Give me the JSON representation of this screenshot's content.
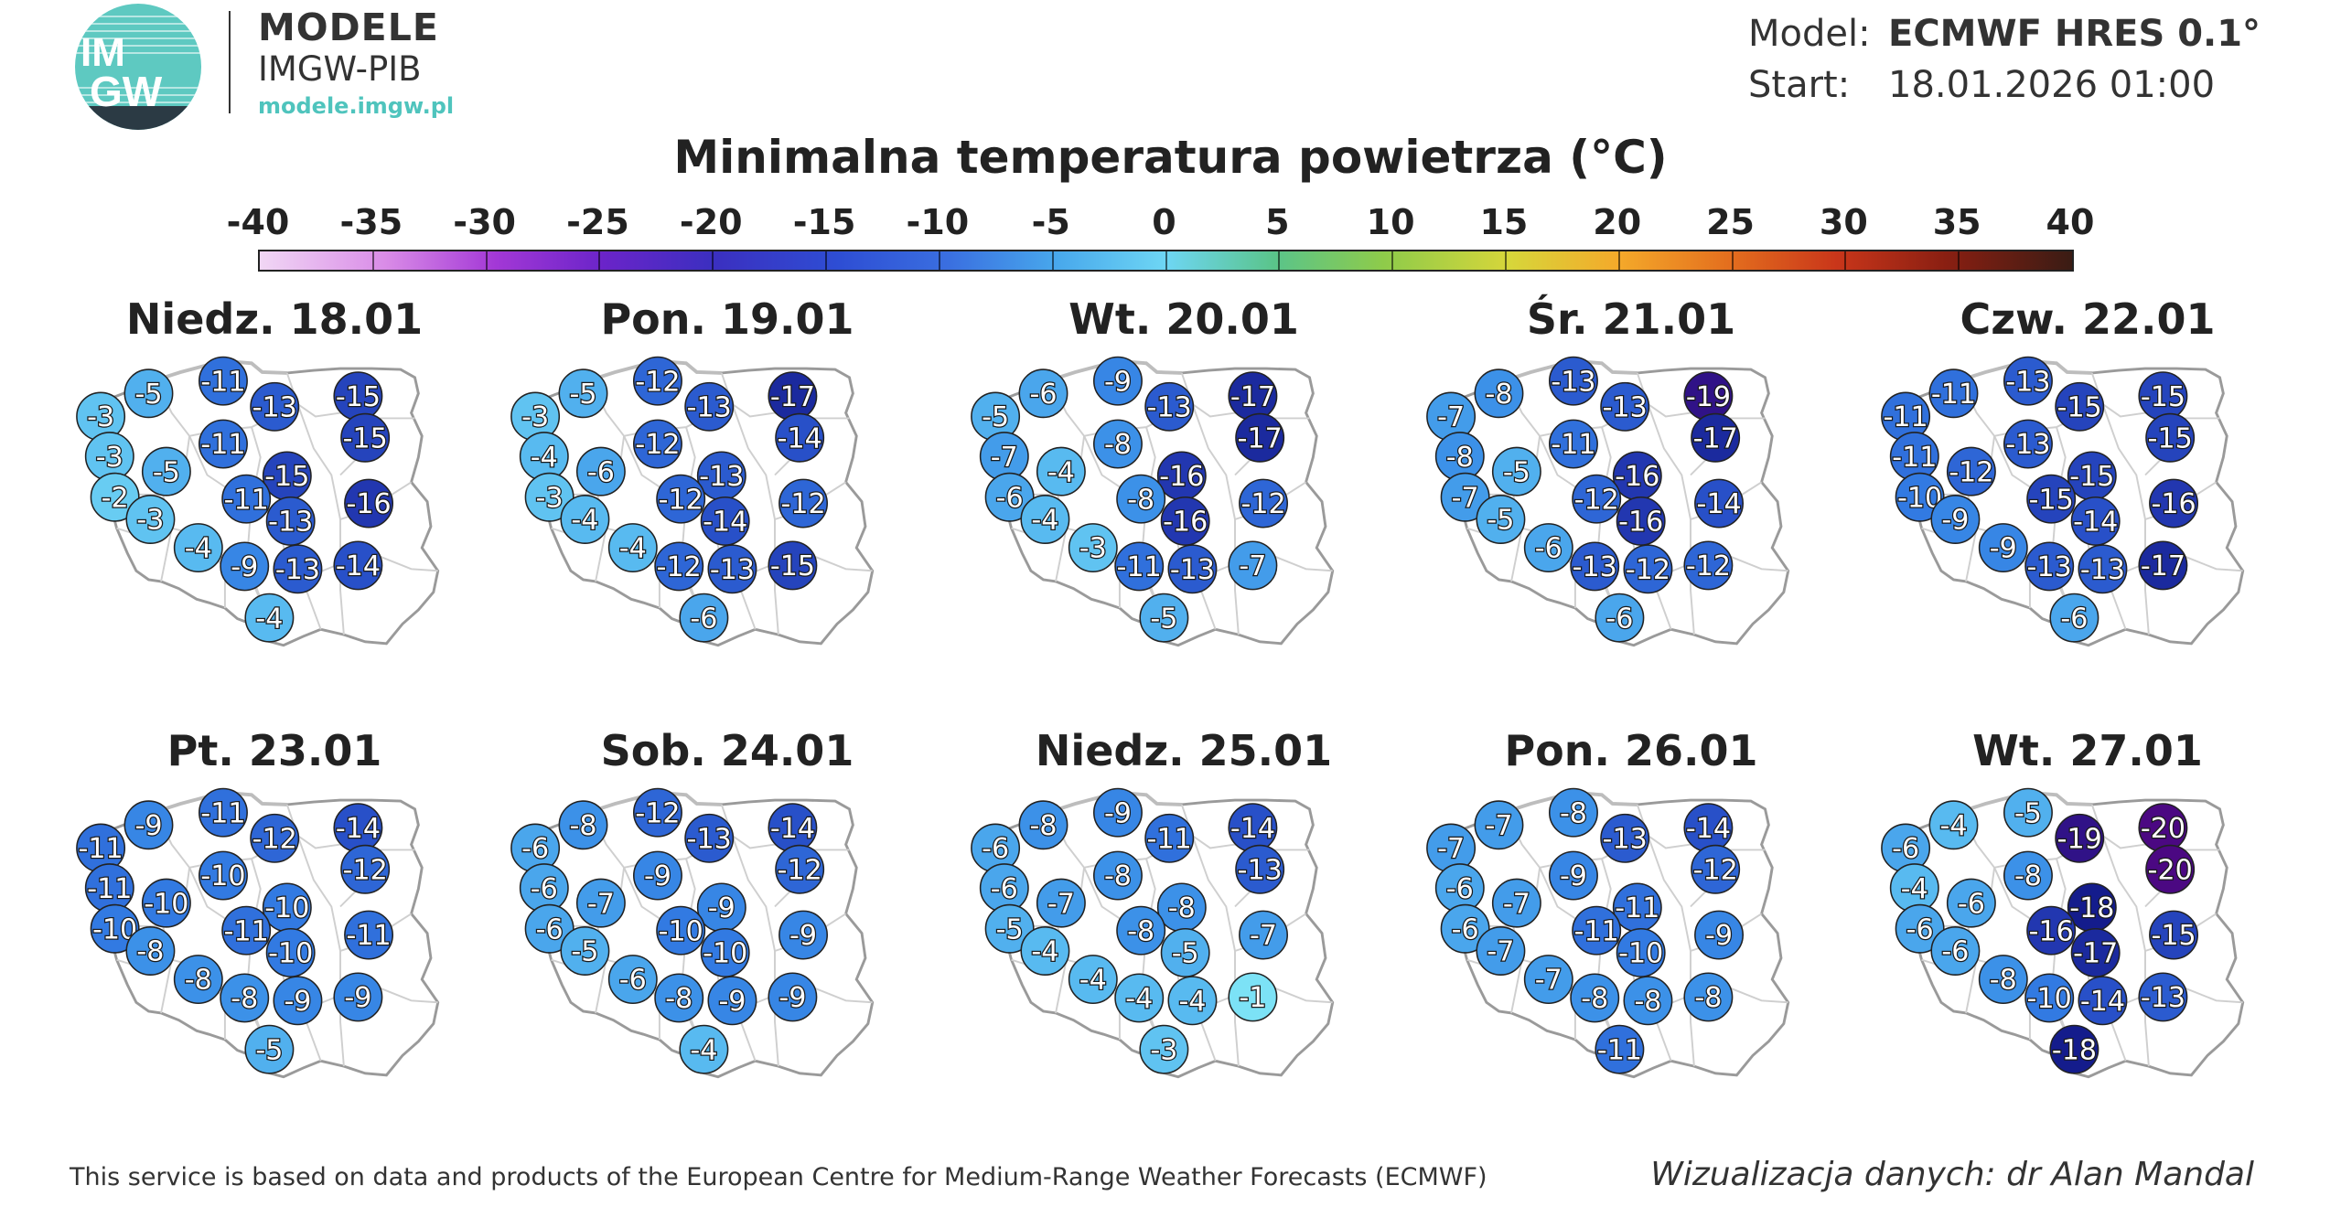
{
  "header": {
    "logo_text": [
      "IM",
      "GW"
    ],
    "brand_title": "MODELE",
    "brand_subtitle": "IMGW-PIB",
    "brand_url": "modele.imgw.pl",
    "model_label": "Model:",
    "model_value": "ECMWF HRES 0.1°",
    "start_label": "Start:",
    "start_value": "18.01.2026 01:00"
  },
  "title": "Minimalna temperatura powietrza (°C)",
  "colorbar": {
    "ticks": [
      "-40",
      "-35",
      "-30",
      "-25",
      "-20",
      "-15",
      "-10",
      "-5",
      "0",
      "5",
      "10",
      "15",
      "20",
      "25",
      "30",
      "35",
      "40"
    ],
    "range": [
      -40,
      40
    ]
  },
  "panels": [
    {
      "label": "Niedz. 18.01",
      "values": [
        -3,
        -5,
        -11,
        -13,
        -15,
        -3,
        -11,
        -15,
        -5,
        -15,
        -2,
        -11,
        -16,
        -3,
        -13,
        -4,
        -9,
        -13,
        -14,
        -4
      ]
    },
    {
      "label": "Pon. 19.01",
      "values": [
        -3,
        -5,
        -12,
        -13,
        -17,
        -4,
        -12,
        -14,
        -6,
        -13,
        -3,
        -12,
        -12,
        -4,
        -14,
        -4,
        -12,
        -13,
        -15,
        -6
      ]
    },
    {
      "label": "Wt. 20.01",
      "values": [
        -5,
        -6,
        -9,
        -13,
        -17,
        -7,
        -8,
        -17,
        -4,
        -16,
        -6,
        -8,
        -12,
        -4,
        -16,
        -3,
        -11,
        -13,
        -7,
        -5
      ]
    },
    {
      "label": "Śr. 21.01",
      "values": [
        -7,
        -8,
        -13,
        -13,
        -19,
        -8,
        -11,
        -17,
        -5,
        -16,
        -7,
        -12,
        -14,
        -5,
        -16,
        -6,
        -13,
        -12,
        -12,
        -6
      ]
    },
    {
      "label": "Czw. 22.01",
      "values": [
        -11,
        -11,
        -13,
        -15,
        -15,
        -11,
        -13,
        -15,
        -12,
        -15,
        -10,
        -15,
        -16,
        -9,
        -14,
        -9,
        -13,
        -13,
        -17,
        -6
      ]
    },
    {
      "label": "Pt. 23.01",
      "values": [
        -11,
        -9,
        -11,
        -12,
        -14,
        -11,
        -10,
        -12,
        -10,
        -10,
        -10,
        -11,
        -11,
        -8,
        -10,
        -8,
        -8,
        -9,
        -9,
        -5
      ]
    },
    {
      "label": "Sob. 24.01",
      "values": [
        -6,
        -8,
        -12,
        -13,
        -14,
        -6,
        -9,
        -12,
        -7,
        -9,
        -6,
        -10,
        -9,
        -5,
        -10,
        -6,
        -8,
        -9,
        -9,
        -4
      ]
    },
    {
      "label": "Niedz. 25.01",
      "values": [
        -6,
        -8,
        -9,
        -11,
        -14,
        -6,
        -8,
        -13,
        -7,
        -8,
        -5,
        -8,
        -7,
        -4,
        -5,
        -4,
        -4,
        -4,
        -1,
        -3
      ]
    },
    {
      "label": "Pon. 26.01",
      "values": [
        -7,
        -7,
        -8,
        -13,
        -14,
        -6,
        -9,
        -12,
        -7,
        -11,
        -6,
        -11,
        -9,
        -7,
        -10,
        -7,
        -8,
        -8,
        -8,
        -11
      ]
    },
    {
      "label": "Wt. 27.01",
      "values": [
        -6,
        -4,
        -5,
        -19,
        -20,
        -4,
        -8,
        -20,
        -6,
        -18,
        -6,
        -16,
        -15,
        -6,
        -17,
        -8,
        -10,
        -14,
        -13,
        -18
      ]
    }
  ],
  "footer": {
    "source": "This service is based on data and products of the European Centre for Medium-Range Weather Forecasts (ECMWF)",
    "credit": "Wizualizacja danych: dr Alan Mandal"
  }
}
